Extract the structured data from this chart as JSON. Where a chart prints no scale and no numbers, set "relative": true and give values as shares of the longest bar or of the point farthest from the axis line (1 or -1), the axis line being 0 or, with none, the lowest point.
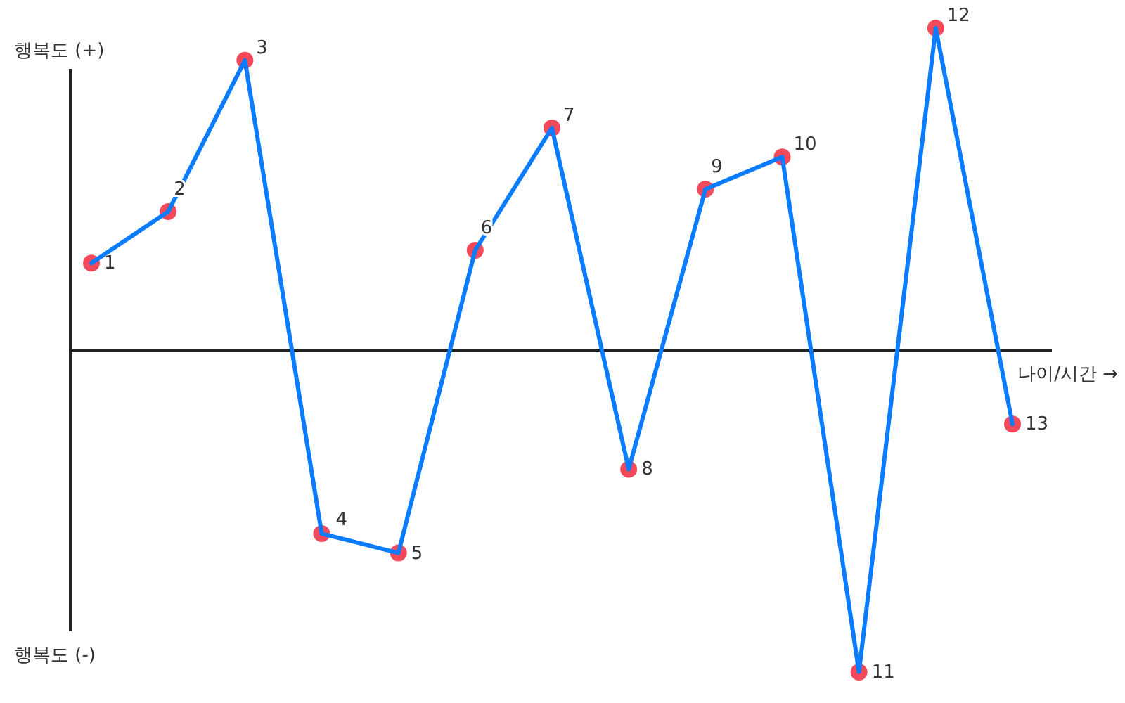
{
  "chart_data": {
    "type": "line",
    "relative": true,
    "xlabel": "나이/시간 →",
    "marker": "circle",
    "line_style": "solid",
    "categories": [
      null,
      null,
      null,
      null,
      null,
      null,
      null,
      null,
      null,
      null,
      null,
      null,
      null
    ],
    "series": [
      {
        "color": "#0a7cff",
        "colors": [
          "#f24a5a",
          "#f24a5a",
          "#f24a5a",
          "#f24a5a",
          "#f24a5a",
          "#f24a5a",
          "#f24a5a",
          "#f24a5a",
          "#f24a5a",
          "#f24a5a",
          "#f24a5a",
          "#f24a5a",
          "#f24a5a"
        ],
        "values": [
          0.27,
          0.43,
          0.9,
          -0.57,
          -0.63,
          0.31,
          0.69,
          -0.37,
          0.5,
          0.6,
          -1,
          1,
          -0.23
        ]
      }
    ],
    "annotations": [
      "1",
      "2",
      "3",
      "4",
      "5",
      "6",
      "7",
      "8",
      "9",
      "10",
      "11",
      "12",
      "13",
      "행복도 (+)",
      "행복도 (-)"
    ]
  }
}
